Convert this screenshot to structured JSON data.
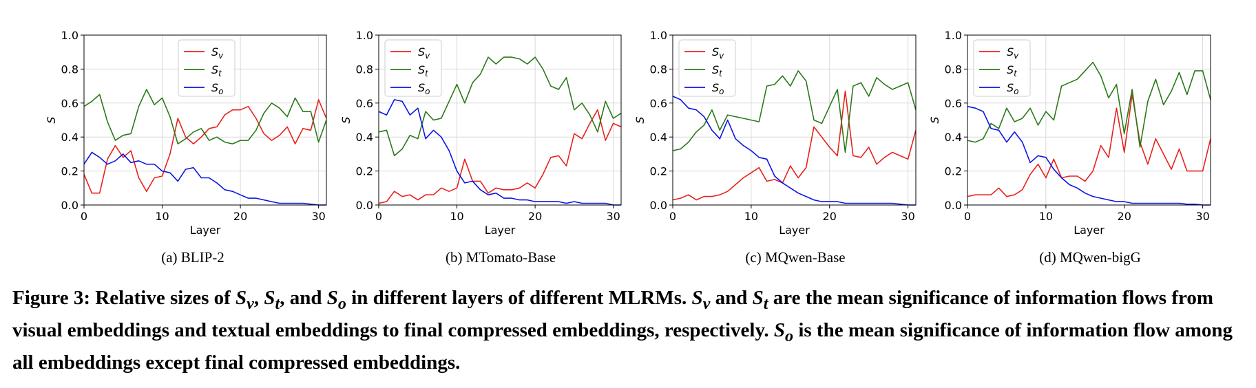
{
  "chart_data": [
    {
      "type": "line",
      "subcaption": "(a)  BLIP-2",
      "xlabel": "Layer",
      "ylabel": "S",
      "xlim": [
        0,
        31
      ],
      "ylim": [
        0.0,
        1.0
      ],
      "xticks": [
        "0",
        "10",
        "20",
        "30"
      ],
      "yticks": [
        "0.0",
        "0.2",
        "0.4",
        "0.6",
        "0.8",
        "1.0"
      ],
      "grid": true,
      "legend_position": "top-center",
      "series": [
        {
          "name": "S_v",
          "color": "#e8211c",
          "values": [
            0.18,
            0.07,
            0.07,
            0.27,
            0.35,
            0.28,
            0.32,
            0.16,
            0.08,
            0.16,
            0.17,
            0.3,
            0.51,
            0.4,
            0.36,
            0.4,
            0.45,
            0.46,
            0.53,
            0.56,
            0.56,
            0.58,
            0.51,
            0.42,
            0.38,
            0.41,
            0.46,
            0.36,
            0.45,
            0.44,
            0.62,
            0.51
          ]
        },
        {
          "name": "S_t",
          "color": "#2a7a18",
          "values": [
            0.58,
            0.61,
            0.65,
            0.49,
            0.38,
            0.41,
            0.42,
            0.58,
            0.68,
            0.59,
            0.63,
            0.52,
            0.36,
            0.39,
            0.43,
            0.45,
            0.38,
            0.4,
            0.37,
            0.36,
            0.38,
            0.38,
            0.44,
            0.54,
            0.6,
            0.57,
            0.52,
            0.63,
            0.55,
            0.55,
            0.37,
            0.5
          ]
        },
        {
          "name": "S_o",
          "color": "#0a14e6",
          "values": [
            0.24,
            0.31,
            0.28,
            0.24,
            0.26,
            0.3,
            0.25,
            0.26,
            0.24,
            0.24,
            0.2,
            0.19,
            0.14,
            0.21,
            0.22,
            0.16,
            0.16,
            0.13,
            0.09,
            0.08,
            0.06,
            0.04,
            0.04,
            0.03,
            0.02,
            0.01,
            0.01,
            0.01,
            0.01,
            0.005,
            0.0,
            0.0
          ]
        }
      ]
    },
    {
      "type": "line",
      "subcaption": "(b)  MTomato-Base",
      "xlabel": "Layer",
      "ylabel": "S",
      "xlim": [
        0,
        31
      ],
      "ylim": [
        0.0,
        1.0
      ],
      "xticks": [
        "0",
        "10",
        "20",
        "30"
      ],
      "yticks": [
        "0.0",
        "0.2",
        "0.4",
        "0.6",
        "0.8",
        "1.0"
      ],
      "grid": true,
      "legend_position": "top-left",
      "series": [
        {
          "name": "S_v",
          "color": "#e8211c",
          "values": [
            0.01,
            0.02,
            0.08,
            0.05,
            0.06,
            0.03,
            0.06,
            0.06,
            0.1,
            0.08,
            0.1,
            0.27,
            0.14,
            0.14,
            0.07,
            0.1,
            0.09,
            0.09,
            0.1,
            0.13,
            0.1,
            0.18,
            0.28,
            0.29,
            0.23,
            0.42,
            0.39,
            0.48,
            0.56,
            0.38,
            0.48,
            0.46
          ]
        },
        {
          "name": "S_t",
          "color": "#2a7a18",
          "values": [
            0.43,
            0.44,
            0.29,
            0.33,
            0.41,
            0.39,
            0.55,
            0.5,
            0.51,
            0.61,
            0.71,
            0.6,
            0.72,
            0.77,
            0.87,
            0.83,
            0.87,
            0.87,
            0.86,
            0.83,
            0.87,
            0.8,
            0.7,
            0.68,
            0.75,
            0.56,
            0.6,
            0.53,
            0.43,
            0.61,
            0.51,
            0.54
          ]
        },
        {
          "name": "S_o",
          "color": "#0a14e6",
          "values": [
            0.55,
            0.53,
            0.62,
            0.61,
            0.53,
            0.57,
            0.39,
            0.44,
            0.4,
            0.32,
            0.2,
            0.13,
            0.14,
            0.09,
            0.06,
            0.07,
            0.04,
            0.04,
            0.03,
            0.03,
            0.02,
            0.02,
            0.02,
            0.02,
            0.01,
            0.02,
            0.01,
            0.01,
            0.01,
            0.01,
            0.0,
            0.0
          ]
        }
      ]
    },
    {
      "type": "line",
      "subcaption": "(c)  MQwen-Base",
      "xlabel": "Layer",
      "ylabel": "S",
      "xlim": [
        0,
        31
      ],
      "ylim": [
        0.0,
        1.0
      ],
      "xticks": [
        "0",
        "10",
        "20",
        "30"
      ],
      "yticks": [
        "0.0",
        "0.2",
        "0.4",
        "0.6",
        "0.8",
        "1.0"
      ],
      "grid": true,
      "legend_position": "top-left",
      "series": [
        {
          "name": "S_v",
          "color": "#e8211c",
          "values": [
            0.03,
            0.04,
            0.06,
            0.03,
            0.05,
            0.05,
            0.06,
            0.08,
            0.12,
            0.16,
            0.19,
            0.22,
            0.14,
            0.15,
            0.13,
            0.23,
            0.16,
            0.22,
            0.46,
            0.4,
            0.34,
            0.29,
            0.67,
            0.29,
            0.28,
            0.34,
            0.24,
            0.28,
            0.31,
            0.29,
            0.27,
            0.44
          ]
        },
        {
          "name": "S_t",
          "color": "#2a7a18",
          "values": [
            0.32,
            0.33,
            0.37,
            0.43,
            0.47,
            0.56,
            0.44,
            0.53,
            0.52,
            0.51,
            0.5,
            0.49,
            0.7,
            0.71,
            0.76,
            0.7,
            0.79,
            0.73,
            0.5,
            0.48,
            0.58,
            0.68,
            0.31,
            0.7,
            0.72,
            0.64,
            0.75,
            0.71,
            0.68,
            0.7,
            0.72,
            0.56
          ]
        },
        {
          "name": "S_o",
          "color": "#0a14e6",
          "values": [
            0.64,
            0.62,
            0.57,
            0.56,
            0.52,
            0.44,
            0.39,
            0.5,
            0.39,
            0.35,
            0.32,
            0.28,
            0.27,
            0.17,
            0.13,
            0.1,
            0.07,
            0.05,
            0.03,
            0.02,
            0.02,
            0.02,
            0.01,
            0.01,
            0.01,
            0.01,
            0.01,
            0.01,
            0.01,
            0.005,
            0.0,
            0.0
          ]
        }
      ]
    },
    {
      "type": "line",
      "subcaption": "(d)  MQwen-bigG",
      "xlabel": "Layer",
      "ylabel": "S",
      "xlim": [
        0,
        31
      ],
      "ylim": [
        0.0,
        1.0
      ],
      "xticks": [
        "0",
        "10",
        "20",
        "30"
      ],
      "yticks": [
        "0.0",
        "0.2",
        "0.4",
        "0.6",
        "0.8",
        "1.0"
      ],
      "grid": true,
      "legend_position": "top-left",
      "series": [
        {
          "name": "S_v",
          "color": "#e8211c",
          "values": [
            0.05,
            0.06,
            0.06,
            0.06,
            0.1,
            0.05,
            0.06,
            0.09,
            0.18,
            0.24,
            0.16,
            0.27,
            0.16,
            0.17,
            0.17,
            0.14,
            0.2,
            0.35,
            0.28,
            0.57,
            0.31,
            0.65,
            0.37,
            0.24,
            0.39,
            0.3,
            0.21,
            0.33,
            0.2,
            0.2,
            0.2,
            0.39
          ]
        },
        {
          "name": "S_t",
          "color": "#2a7a18",
          "values": [
            0.38,
            0.37,
            0.39,
            0.48,
            0.45,
            0.57,
            0.49,
            0.51,
            0.57,
            0.47,
            0.55,
            0.5,
            0.7,
            0.72,
            0.74,
            0.79,
            0.84,
            0.76,
            0.63,
            0.71,
            0.42,
            0.68,
            0.34,
            0.61,
            0.74,
            0.59,
            0.67,
            0.78,
            0.65,
            0.79,
            0.79,
            0.62
          ]
        },
        {
          "name": "S_o",
          "color": "#0a14e6",
          "values": [
            0.58,
            0.57,
            0.55,
            0.45,
            0.44,
            0.37,
            0.43,
            0.37,
            0.25,
            0.29,
            0.28,
            0.21,
            0.16,
            0.12,
            0.1,
            0.07,
            0.05,
            0.04,
            0.03,
            0.02,
            0.02,
            0.01,
            0.01,
            0.01,
            0.01,
            0.01,
            0.01,
            0.01,
            0.005,
            0.005,
            0.0,
            0.0
          ]
        }
      ]
    }
  ],
  "caption": {
    "label": "Figure 3:",
    "t1": " Relative sizes of ",
    "sv": "S",
    "sv_sub": "v",
    "t2": ", ",
    "st": "S",
    "st_sub": "t",
    "t3": ", and ",
    "so": "S",
    "so_sub": "o",
    "t4": " in different layers of different MLRMs. ",
    "sv2": "S",
    "sv2_sub": "v",
    "t5": " and ",
    "st2": "S",
    "st2_sub": "t",
    "t6": " are the mean significance of information flows from visual embeddings and textual embeddings to final compressed embeddings, respectively. ",
    "so2": "S",
    "so2_sub": "o",
    "t7": " is the mean significance of information flow among all embeddings except final compressed embeddings."
  }
}
